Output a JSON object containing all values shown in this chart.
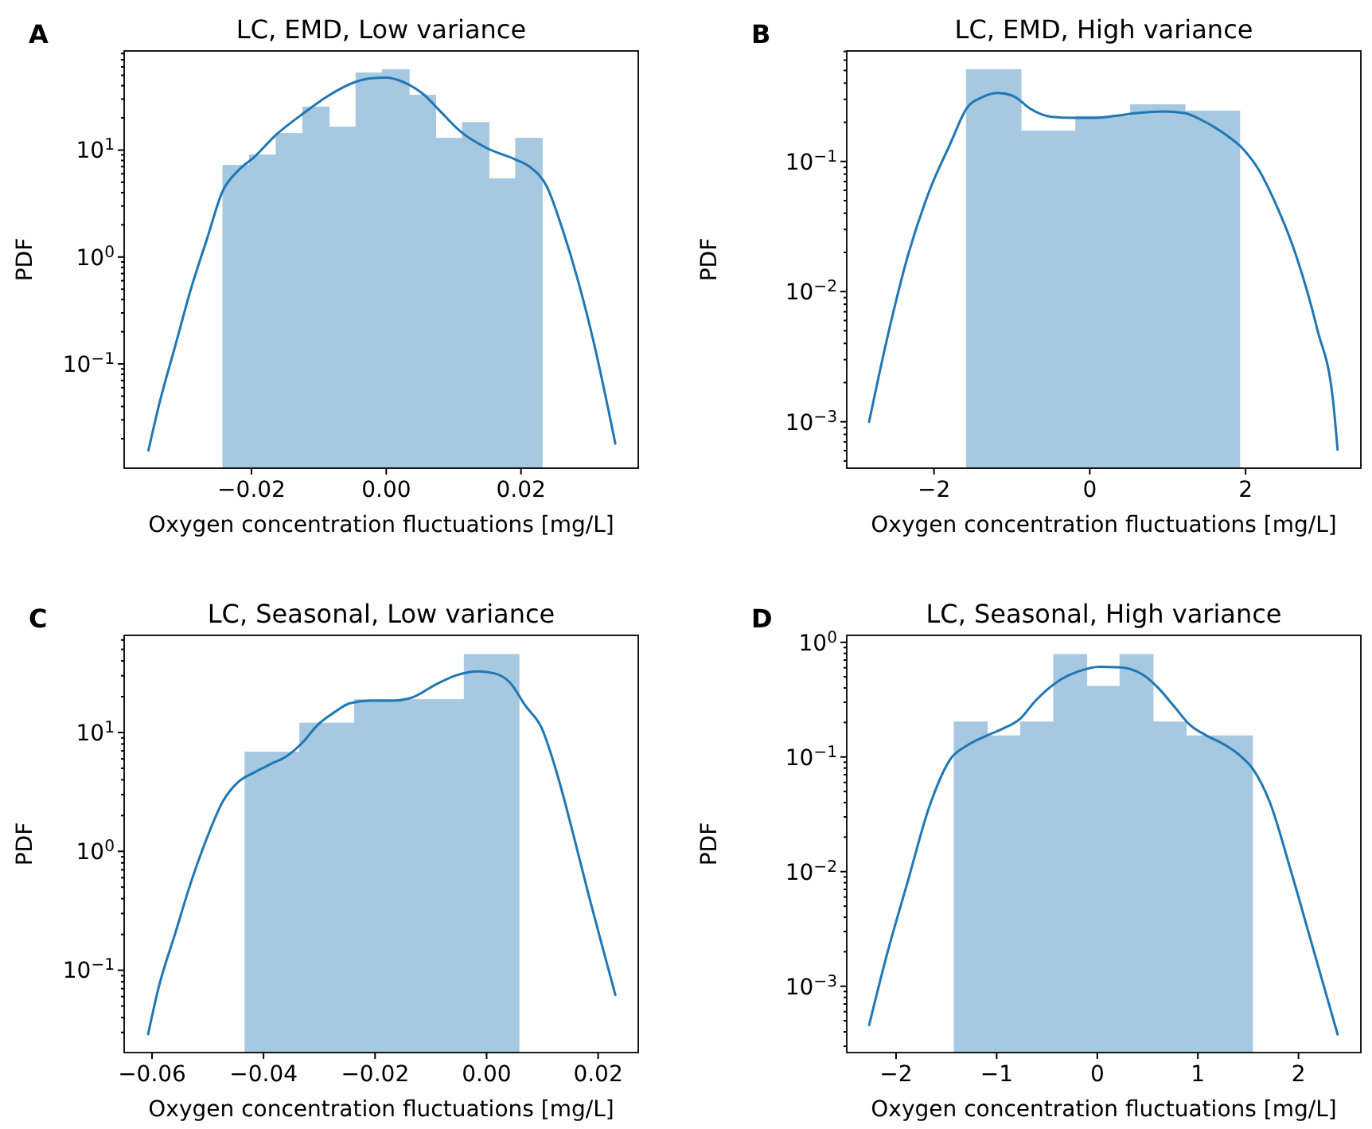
{
  "chart_data": [
    {
      "type": "histogram",
      "title": "LC, EMD, Low variance",
      "xlabel": "Oxygen concentration fluctuations [mg/L]",
      "ylabel": "PDF",
      "annotations": [
        "A"
      ],
      "log": "y",
      "color": "#a6c8e1",
      "bins": [
        -0.02425,
        -0.0203,
        -0.01635,
        -0.0124,
        -0.00845,
        -0.0045,
        -0.00055,
        0.0034,
        0.00735,
        0.0113,
        0.01525,
        0.0192,
        0.02315
      ],
      "values": [
        7.2,
        9.0,
        14.3,
        25.3,
        16.4,
        52.6,
        56.4,
        32.5,
        12.9,
        18.1,
        5.4,
        12.9
      ],
      "series": [
        {
          "type": "line",
          "color": "#1f77b4",
          "x": [
            -0.0353,
            -0.0337,
            -0.0313,
            -0.029,
            -0.0266,
            -0.0243,
            -0.0219,
            -0.0195,
            -0.0164,
            -0.0124,
            -0.0085,
            -0.0046,
            -0.0022,
            0,
            0.0025,
            0.0057,
            0.008,
            0.0112,
            0.0151,
            0.0191,
            0.0214,
            0.0238,
            0.0261,
            0.0285,
            0.0309,
            0.0328,
            0.034
          ],
          "values": [
            0.0155,
            0.042,
            0.149,
            0.5,
            1.48,
            4.1,
            6.5,
            8.7,
            13.8,
            21.8,
            32.5,
            43.3,
            47,
            47.5,
            43.3,
            32.5,
            23.1,
            14.6,
            10.3,
            8.2,
            6.9,
            4.6,
            1.86,
            0.59,
            0.149,
            0.042,
            0.018
          ]
        }
      ],
      "xlim": [
        -0.0389,
        0.0374
      ],
      "xticks": [
        {
          "value": -0.02,
          "label": "−0.02"
        },
        {
          "value": 0,
          "label": "0.00"
        },
        {
          "value": 0.02,
          "label": "0.02"
        }
      ],
      "ylim": [
        0.0106,
        84.5
      ],
      "yticks": [
        {
          "value": 0.1,
          "label": "10$^{−1}$"
        },
        {
          "value": 1,
          "label": "10$^{0}$"
        },
        {
          "value": 10,
          "label": "10$^{1}$"
        },
        {
          "value": 0.02,
          "label": null
        },
        {
          "value": 0.03,
          "label": null
        },
        {
          "value": 0.04,
          "label": null
        },
        {
          "value": 0.05,
          "label": null
        },
        {
          "value": 0.06,
          "label": null
        },
        {
          "value": 0.07,
          "label": null
        },
        {
          "value": 0.08,
          "label": null
        },
        {
          "value": 0.09,
          "label": null
        },
        {
          "value": 0.2,
          "label": null
        },
        {
          "value": 0.3,
          "label": null
        },
        {
          "value": 0.4,
          "label": null
        },
        {
          "value": 0.5,
          "label": null
        },
        {
          "value": 0.6,
          "label": null
        },
        {
          "value": 0.7,
          "label": null
        },
        {
          "value": 0.8,
          "label": null
        },
        {
          "value": 0.9,
          "label": null
        },
        {
          "value": 2,
          "label": null
        },
        {
          "value": 3,
          "label": null
        },
        {
          "value": 4,
          "label": null
        },
        {
          "value": 5,
          "label": null
        },
        {
          "value": 6,
          "label": null
        },
        {
          "value": 7,
          "label": null
        },
        {
          "value": 8,
          "label": null
        },
        {
          "value": 9,
          "label": null
        },
        {
          "value": 20,
          "label": null
        },
        {
          "value": 30,
          "label": null
        },
        {
          "value": 40,
          "label": null
        },
        {
          "value": 50,
          "label": null
        },
        {
          "value": 60,
          "label": null
        },
        {
          "value": 70,
          "label": null
        },
        {
          "value": 80,
          "label": null
        }
      ]
    },
    {
      "type": "histogram",
      "title": "LC, EMD, High variance",
      "xlabel": "Oxygen concentration fluctuations [mg/L]",
      "ylabel": "PDF",
      "annotations": [
        "B"
      ],
      "log": "y",
      "color": "#a6c8e1",
      "bins": [
        -1.584,
        -0.882,
        -0.18,
        0.521,
        1.223,
        1.925
      ],
      "values": [
        0.508,
        0.171,
        0.222,
        0.273,
        0.244
      ],
      "series": [
        {
          "type": "line",
          "color": "#1f77b4",
          "x": [
            -2.833,
            -2.608,
            -2.334,
            -2.061,
            -1.788,
            -1.584,
            -1.379,
            -1.174,
            -0.969,
            -0.765,
            -0.491,
            -0.218,
            0.055,
            0.328,
            0.601,
            0.942,
            1.215,
            1.488,
            1.761,
            1.966,
            2.171,
            2.375,
            2.648,
            2.922,
            3.126,
            3.181
          ],
          "values": [
            0.001,
            0.0042,
            0.019,
            0.059,
            0.138,
            0.254,
            0.312,
            0.336,
            0.315,
            0.254,
            0.22,
            0.216,
            0.216,
            0.224,
            0.235,
            0.242,
            0.235,
            0.2,
            0.158,
            0.125,
            0.086,
            0.049,
            0.019,
            0.0051,
            0.0014,
            0.00061
          ]
        }
      ],
      "xlim": [
        -3.12,
        3.48
      ],
      "xticks": [
        {
          "value": -2,
          "label": "−2"
        },
        0,
        2
      ],
      "ylim": [
        0.00044,
        0.706
      ],
      "yticks": [
        {
          "value": 0.001,
          "label": "10$^{−3}$"
        },
        {
          "value": 0.01,
          "label": "10$^{−2}$"
        },
        {
          "value": 0.1,
          "label": "10$^{−1}$"
        },
        {
          "value": 0.0005,
          "label": null
        },
        {
          "value": 0.0006,
          "label": null
        },
        {
          "value": 0.0007,
          "label": null
        },
        {
          "value": 0.0008,
          "label": null
        },
        {
          "value": 0.0009,
          "label": null
        },
        {
          "value": 0.002,
          "label": null
        },
        {
          "value": 0.003,
          "label": null
        },
        {
          "value": 0.004,
          "label": null
        },
        {
          "value": 0.005,
          "label": null
        },
        {
          "value": 0.006,
          "label": null
        },
        {
          "value": 0.007,
          "label": null
        },
        {
          "value": 0.008,
          "label": null
        },
        {
          "value": 0.009,
          "label": null
        },
        {
          "value": 0.02,
          "label": null
        },
        {
          "value": 0.03,
          "label": null
        },
        {
          "value": 0.04,
          "label": null
        },
        {
          "value": 0.05,
          "label": null
        },
        {
          "value": 0.06,
          "label": null
        },
        {
          "value": 0.07,
          "label": null
        },
        {
          "value": 0.08,
          "label": null
        },
        {
          "value": 0.09,
          "label": null
        },
        {
          "value": 0.2,
          "label": null
        },
        {
          "value": 0.3,
          "label": null
        },
        {
          "value": 0.4,
          "label": null
        },
        {
          "value": 0.5,
          "label": null
        },
        {
          "value": 0.6,
          "label": null
        },
        {
          "value": 0.7,
          "label": null
        }
      ]
    },
    {
      "type": "histogram",
      "title": "LC, Seasonal, Low variance",
      "xlabel": "Oxygen concentration fluctuations [mg/L]",
      "ylabel": "PDF",
      "annotations": [
        "C"
      ],
      "log": "y",
      "color": "#a6c8e1",
      "bins": [
        -0.04333,
        -0.0335,
        -0.02367,
        -0.01384,
        -0.00401,
        0.00581
      ],
      "values": [
        6.84,
        12.0,
        18.9,
        18.9,
        45.3
      ],
      "series": [
        {
          "type": "line",
          "color": "#1f77b4",
          "x": [
            -0.0607,
            -0.0588,
            -0.0559,
            -0.0531,
            -0.0502,
            -0.0473,
            -0.0445,
            -0.0416,
            -0.0388,
            -0.0359,
            -0.0331,
            -0.0302,
            -0.0273,
            -0.0245,
            -0.0207,
            -0.0169,
            -0.0131,
            -0.0092,
            -0.0054,
            -0.0016,
            0.0012,
            0.0041,
            0.007,
            0.0098,
            0.0127,
            0.0155,
            0.0184,
            0.0212,
            0.0231
          ],
          "values": [
            0.029,
            0.072,
            0.2,
            0.535,
            1.28,
            2.63,
            3.85,
            4.63,
            5.4,
            6.3,
            8.15,
            11.7,
            14.8,
            17.6,
            18.5,
            18.5,
            19.9,
            25.2,
            30.3,
            32.6,
            31.6,
            26.6,
            16.7,
            11.1,
            4.4,
            1.42,
            0.413,
            0.133,
            0.062
          ]
        }
      ],
      "xlim": [
        -0.065,
        0.0272
      ],
      "xticks": [
        {
          "value": -0.06,
          "label": "−0.06"
        },
        {
          "value": -0.04,
          "label": "−0.04"
        },
        {
          "value": -0.02,
          "label": "−0.02"
        },
        {
          "value": 0,
          "label": "0.00"
        },
        {
          "value": 0.02,
          "label": "0.02"
        }
      ],
      "ylim": [
        0.0203,
        65.6
      ],
      "yticks": [
        {
          "value": 0.1,
          "label": "10$^{−1}$"
        },
        {
          "value": 1,
          "label": "10$^{0}$"
        },
        {
          "value": 10,
          "label": "10$^{1}$"
        },
        {
          "value": 0.03,
          "label": null
        },
        {
          "value": 0.04,
          "label": null
        },
        {
          "value": 0.05,
          "label": null
        },
        {
          "value": 0.06,
          "label": null
        },
        {
          "value": 0.07,
          "label": null
        },
        {
          "value": 0.08,
          "label": null
        },
        {
          "value": 0.09,
          "label": null
        },
        {
          "value": 0.2,
          "label": null
        },
        {
          "value": 0.3,
          "label": null
        },
        {
          "value": 0.4,
          "label": null
        },
        {
          "value": 0.5,
          "label": null
        },
        {
          "value": 0.6,
          "label": null
        },
        {
          "value": 0.7,
          "label": null
        },
        {
          "value": 0.8,
          "label": null
        },
        {
          "value": 0.9,
          "label": null
        },
        {
          "value": 2,
          "label": null
        },
        {
          "value": 3,
          "label": null
        },
        {
          "value": 4,
          "label": null
        },
        {
          "value": 5,
          "label": null
        },
        {
          "value": 6,
          "label": null
        },
        {
          "value": 7,
          "label": null
        },
        {
          "value": 8,
          "label": null
        },
        {
          "value": 9,
          "label": null
        },
        {
          "value": 20,
          "label": null
        },
        {
          "value": 30,
          "label": null
        },
        {
          "value": 40,
          "label": null
        },
        {
          "value": 50,
          "label": null
        },
        {
          "value": 60,
          "label": null
        }
      ]
    },
    {
      "type": "histogram",
      "title": "LC, Seasonal, High variance",
      "xlabel": "Oxygen concentration fluctuations [mg/L]",
      "ylabel": "PDF",
      "annotations": [
        "D"
      ],
      "log": "y",
      "color": "#a6c8e1",
      "bins": [
        -1.422,
        -1.0925,
        -0.763,
        -0.4335,
        -0.104,
        0.2255,
        0.555,
        0.8845,
        1.214,
        1.543
      ],
      "values": [
        0.202,
        0.153,
        0.202,
        0.783,
        0.413,
        0.783,
        0.202,
        0.153,
        0.153
      ],
      "series": [
        {
          "type": "line",
          "color": "#1f77b4",
          "x": [
            -2.267,
            -2.093,
            -1.882,
            -1.67,
            -1.459,
            -1.3,
            -1.089,
            -0.93,
            -0.772,
            -0.613,
            -0.402,
            -0.19,
            0.021,
            0.233,
            0.444,
            0.603,
            0.761,
            0.92,
            1.078,
            1.237,
            1.395,
            1.554,
            1.712,
            1.924,
            2.135,
            2.389
          ],
          "values": [
            0.00046,
            0.00186,
            0.0083,
            0.0367,
            0.096,
            0.125,
            0.155,
            0.178,
            0.213,
            0.31,
            0.45,
            0.556,
            0.612,
            0.605,
            0.527,
            0.403,
            0.278,
            0.191,
            0.155,
            0.132,
            0.107,
            0.077,
            0.041,
            0.0102,
            0.0023,
            0.00038
          ]
        }
      ],
      "xlim": [
        -2.49,
        2.62
      ],
      "xticks": [
        {
          "value": -2,
          "label": "−2"
        },
        {
          "value": -1,
          "label": "−1"
        },
        0,
        1,
        2
      ],
      "ylim": [
        0.000264,
        1.15
      ],
      "yticks": [
        {
          "value": 0.001,
          "label": "10$^{−3}$"
        },
        {
          "value": 0.01,
          "label": "10$^{−2}$"
        },
        {
          "value": 0.1,
          "label": "10$^{−1}$"
        },
        {
          "value": 1,
          "label": "10$^{0}$"
        },
        {
          "value": 0.0003,
          "label": null
        },
        {
          "value": 0.0004,
          "label": null
        },
        {
          "value": 0.0005,
          "label": null
        },
        {
          "value": 0.0006,
          "label": null
        },
        {
          "value": 0.0007,
          "label": null
        },
        {
          "value": 0.0008,
          "label": null
        },
        {
          "value": 0.0009,
          "label": null
        },
        {
          "value": 0.002,
          "label": null
        },
        {
          "value": 0.003,
          "label": null
        },
        {
          "value": 0.004,
          "label": null
        },
        {
          "value": 0.005,
          "label": null
        },
        {
          "value": 0.006,
          "label": null
        },
        {
          "value": 0.007,
          "label": null
        },
        {
          "value": 0.008,
          "label": null
        },
        {
          "value": 0.009,
          "label": null
        },
        {
          "value": 0.02,
          "label": null
        },
        {
          "value": 0.03,
          "label": null
        },
        {
          "value": 0.04,
          "label": null
        },
        {
          "value": 0.05,
          "label": null
        },
        {
          "value": 0.06,
          "label": null
        },
        {
          "value": 0.07,
          "label": null
        },
        {
          "value": 0.08,
          "label": null
        },
        {
          "value": 0.09,
          "label": null
        },
        {
          "value": 0.2,
          "label": null
        },
        {
          "value": 0.3,
          "label": null
        },
        {
          "value": 0.4,
          "label": null
        },
        {
          "value": 0.5,
          "label": null
        },
        {
          "value": 0.6,
          "label": null
        },
        {
          "value": 0.7,
          "label": null
        },
        {
          "value": 0.8,
          "label": null
        },
        {
          "value": 0.9,
          "label": null
        }
      ]
    }
  ]
}
